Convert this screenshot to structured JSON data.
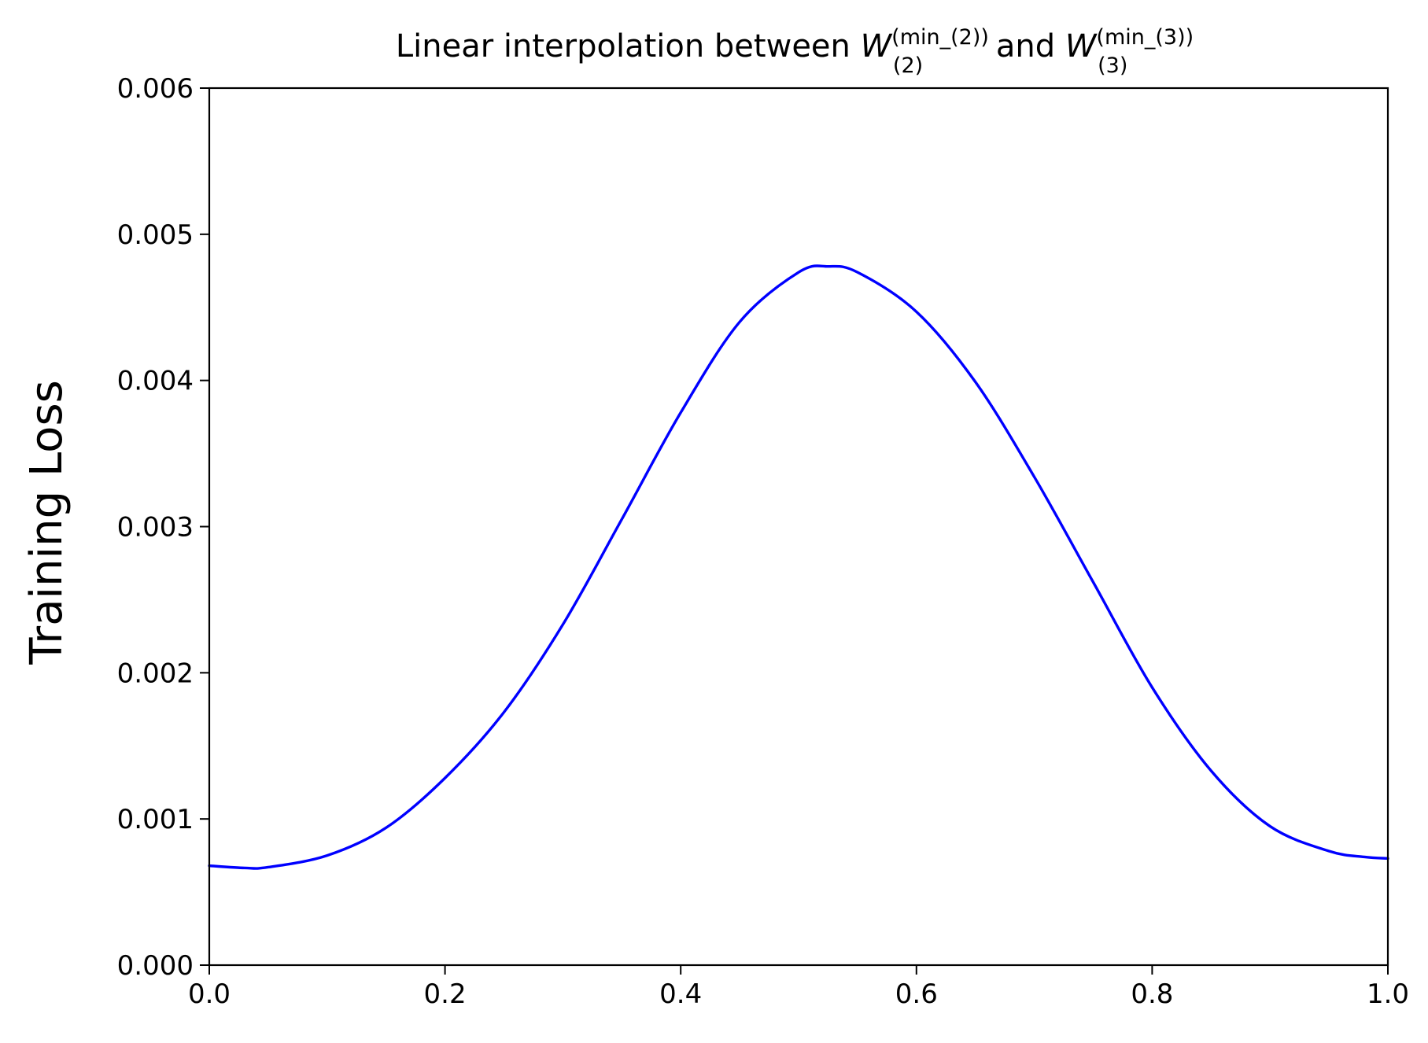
{
  "chart_data": {
    "type": "line",
    "title": {
      "prefix": "Linear interpolation between ",
      "var1": "W",
      "sub1": "(2)",
      "sup1": "(min_(2))",
      "middle": " and ",
      "var2": "W",
      "sub2": "(3)",
      "sup2": "(min_(3))"
    },
    "xlabel": "",
    "ylabel": "Training Loss",
    "xlim": [
      0.0,
      1.0
    ],
    "ylim": [
      0.0,
      0.006
    ],
    "xticks": [
      0.0,
      0.2,
      0.4,
      0.6,
      0.8,
      1.0
    ],
    "xtick_labels": [
      "0.0",
      "0.2",
      "0.4",
      "0.6",
      "0.8",
      "1.0"
    ],
    "yticks": [
      0.0,
      0.001,
      0.002,
      0.003,
      0.004,
      0.005,
      0.006
    ],
    "ytick_labels": [
      "0.000",
      "0.001",
      "0.002",
      "0.003",
      "0.004",
      "0.005",
      "0.006"
    ],
    "grid": false,
    "series": [
      {
        "color": "#0000ff",
        "x": [
          0.0,
          0.03,
          0.05,
          0.1,
          0.15,
          0.2,
          0.25,
          0.3,
          0.35,
          0.4,
          0.45,
          0.5,
          0.525,
          0.55,
          0.6,
          0.65,
          0.7,
          0.75,
          0.8,
          0.85,
          0.9,
          0.95,
          0.98,
          1.0
        ],
        "y": [
          0.00068,
          0.000665,
          0.00067,
          0.00075,
          0.00094,
          0.00128,
          0.00173,
          0.00233,
          0.00305,
          0.00378,
          0.0044,
          0.00474,
          0.00478,
          0.00474,
          0.00447,
          0.00399,
          0.00334,
          0.00262,
          0.0019,
          0.00133,
          0.00095,
          0.00078,
          0.00074,
          0.00073
        ]
      }
    ]
  }
}
